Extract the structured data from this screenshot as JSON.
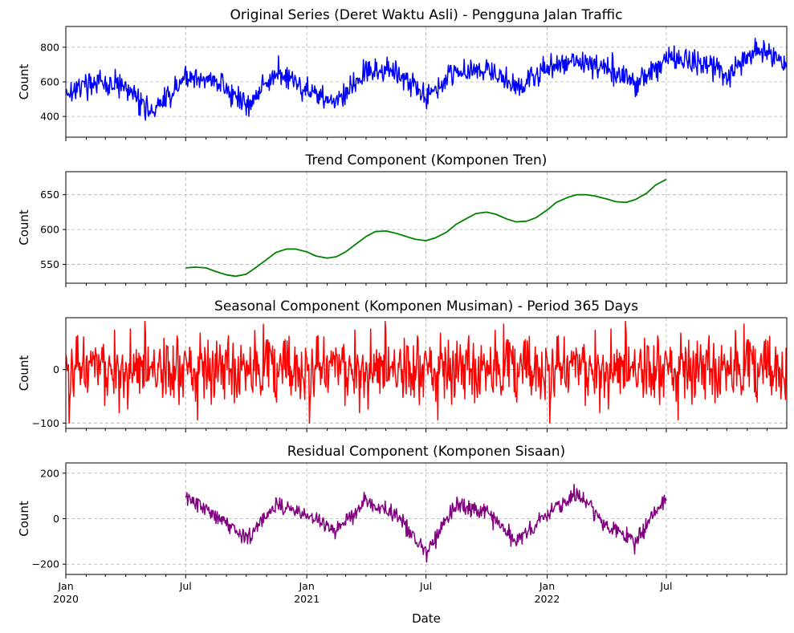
{
  "x_axis": {
    "label": "Date",
    "range": [
      "2020-01-01",
      "2022-12-31"
    ],
    "major_ticks": [
      {
        "date": "2020-01-01",
        "line1": "Jan",
        "line2": "2020"
      },
      {
        "date": "2020-07-01",
        "line1": "Jul",
        "line2": ""
      },
      {
        "date": "2021-01-01",
        "line1": "Jan",
        "line2": "2021"
      },
      {
        "date": "2021-07-01",
        "line1": "Jul",
        "line2": ""
      },
      {
        "date": "2022-01-01",
        "line1": "Jan",
        "line2": "2022"
      },
      {
        "date": "2022-07-01",
        "line1": "Jul",
        "line2": ""
      }
    ],
    "minor_ticks": "monthly"
  },
  "colors": {
    "original": "#0000ff",
    "trend": "#008000",
    "seasonal": "#ff0000",
    "residual": "#800080",
    "grid": "#b0b0b0"
  },
  "chart_data": [
    {
      "type": "line",
      "title": "Original Series (Deret Waktu Asli) - Pengguna Jalan Traffic",
      "xlabel": "",
      "ylabel": "Count",
      "ylim": [
        280,
        920
      ],
      "yticks": [
        400,
        600,
        800
      ],
      "grid": true,
      "color": "blue",
      "x": [
        "2020-01-01",
        "2020-02-15",
        "2020-04-01",
        "2020-05-15",
        "2020-07-01",
        "2020-08-15",
        "2020-10-01",
        "2020-11-15",
        "2021-01-01",
        "2021-02-15",
        "2021-04-01",
        "2021-05-15",
        "2021-07-01",
        "2021-08-15",
        "2021-10-01",
        "2021-11-15",
        "2022-01-01",
        "2022-02-15",
        "2022-04-01",
        "2022-05-15",
        "2022-07-01",
        "2022-08-15",
        "2022-10-01",
        "2022-11-15",
        "2022-12-31"
      ],
      "values": [
        540,
        600,
        560,
        420,
        630,
        610,
        460,
        650,
        560,
        480,
        650,
        670,
        520,
        660,
        680,
        560,
        680,
        720,
        680,
        580,
        740,
        720,
        640,
        790,
        710
      ],
      "noise_amplitude": 75
    },
    {
      "type": "line",
      "title": "Trend Component (Komponen Tren)",
      "xlabel": "",
      "ylabel": "Count",
      "ylim": [
        523,
        683
      ],
      "yticks": [
        550,
        600,
        650
      ],
      "grid": true,
      "color": "green",
      "x": [
        "2020-07-01",
        "2020-07-15",
        "2020-08-01",
        "2020-08-15",
        "2020-09-01",
        "2020-09-15",
        "2020-10-01",
        "2020-10-15",
        "2020-11-01",
        "2020-11-15",
        "2020-12-01",
        "2020-12-15",
        "2021-01-01",
        "2021-01-15",
        "2021-02-01",
        "2021-02-15",
        "2021-03-01",
        "2021-03-15",
        "2021-04-01",
        "2021-04-15",
        "2021-05-01",
        "2021-05-15",
        "2021-06-01",
        "2021-06-15",
        "2021-07-01",
        "2021-07-15",
        "2021-08-01",
        "2021-08-15",
        "2021-09-01",
        "2021-09-15",
        "2021-10-01",
        "2021-10-15",
        "2021-11-01",
        "2021-11-15",
        "2021-12-01",
        "2021-12-15",
        "2022-01-01",
        "2022-01-15",
        "2022-02-01",
        "2022-02-15",
        "2022-03-01",
        "2022-03-15",
        "2022-04-01",
        "2022-04-15",
        "2022-05-01",
        "2022-05-15",
        "2022-06-01",
        "2022-06-15",
        "2022-07-01"
      ],
      "values": [
        545,
        546,
        545,
        540,
        535,
        533,
        536,
        545,
        557,
        567,
        572,
        572,
        568,
        562,
        559,
        561,
        568,
        578,
        590,
        597,
        598,
        595,
        590,
        586,
        584,
        588,
        596,
        607,
        616,
        623,
        625,
        622,
        615,
        611,
        612,
        617,
        628,
        639,
        646,
        650,
        650,
        648,
        644,
        640,
        639,
        643,
        652,
        664,
        672
      ]
    },
    {
      "type": "line",
      "title": "Seasonal Component (Komponen Musiman) - Period 365 Days",
      "xlabel": "",
      "ylabel": "Count",
      "ylim": [
        -110,
        97
      ],
      "yticks": [
        -100,
        0
      ],
      "grid": true,
      "color": "red",
      "x_range": [
        "2020-01-01",
        "2022-12-31"
      ],
      "period_days": 365,
      "values_range": [
        -100,
        90
      ]
    },
    {
      "type": "line",
      "title": "Residual Component (Komponen Sisaan)",
      "xlabel": "Date",
      "ylabel": "Count",
      "ylim": [
        -245,
        245
      ],
      "yticks": [
        -200,
        0,
        200
      ],
      "grid": true,
      "color": "purple",
      "x": [
        "2020-07-01",
        "2020-08-15",
        "2020-10-01",
        "2020-11-15",
        "2021-01-01",
        "2021-02-15",
        "2021-04-01",
        "2021-05-15",
        "2021-07-01",
        "2021-08-15",
        "2021-10-01",
        "2021-11-15",
        "2022-01-01",
        "2022-02-15",
        "2022-04-01",
        "2022-05-15",
        "2022-07-01"
      ],
      "values": [
        90,
        20,
        -90,
        60,
        20,
        -60,
        80,
        20,
        -150,
        60,
        30,
        -100,
        20,
        110,
        -20,
        -100,
        90
      ],
      "noise_amplitude": 40
    }
  ]
}
